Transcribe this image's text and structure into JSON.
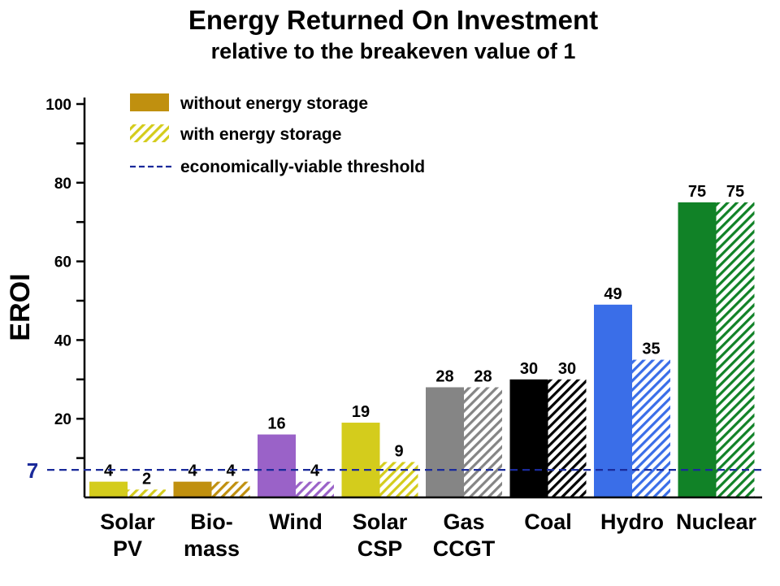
{
  "chart_data": {
    "type": "bar",
    "title": "Energy Returned On Investment",
    "subtitle": "relative to the breakeven value of 1",
    "ylabel": "EROI",
    "xlabel": "",
    "ylim": [
      0,
      100
    ],
    "yticks": [
      20,
      40,
      60,
      80,
      100
    ],
    "grid": false,
    "legend_position": "top-left",
    "categories": [
      {
        "lines": [
          "Solar",
          "PV"
        ]
      },
      {
        "lines": [
          "Bio-",
          "mass"
        ]
      },
      {
        "lines": [
          "Wind"
        ]
      },
      {
        "lines": [
          "Solar",
          "CSP"
        ]
      },
      {
        "lines": [
          "Gas",
          "CCGT"
        ]
      },
      {
        "lines": [
          "Coal"
        ]
      },
      {
        "lines": [
          "Hydro"
        ]
      },
      {
        "lines": [
          "Nuclear"
        ]
      }
    ],
    "colors": [
      "#d4cc1c",
      "#c0900f",
      "#9a62c8",
      "#d4cc1c",
      "#858585",
      "#000000",
      "#3a6ee8",
      "#118227"
    ],
    "series": [
      {
        "name": "without energy storage",
        "values": [
          4,
          4,
          16,
          19,
          28,
          30,
          49,
          75
        ],
        "labels": [
          "4",
          "4",
          "16",
          "19",
          "28",
          "30",
          "49",
          "75"
        ],
        "pattern": "solid"
      },
      {
        "name": "with energy storage",
        "values": [
          2,
          4,
          4,
          9,
          28,
          30,
          35,
          75
        ],
        "labels": [
          "2",
          "4",
          "4",
          "9",
          "28",
          "30",
          "35",
          "75"
        ],
        "pattern": "hatched"
      }
    ],
    "threshold": {
      "name": "economically-viable threshold",
      "value": 7,
      "label": "7",
      "color": "#1a2a9a"
    },
    "legend_swatch_colors": {
      "solid": "#c0900f",
      "hatched": "#d4cc1c"
    }
  }
}
